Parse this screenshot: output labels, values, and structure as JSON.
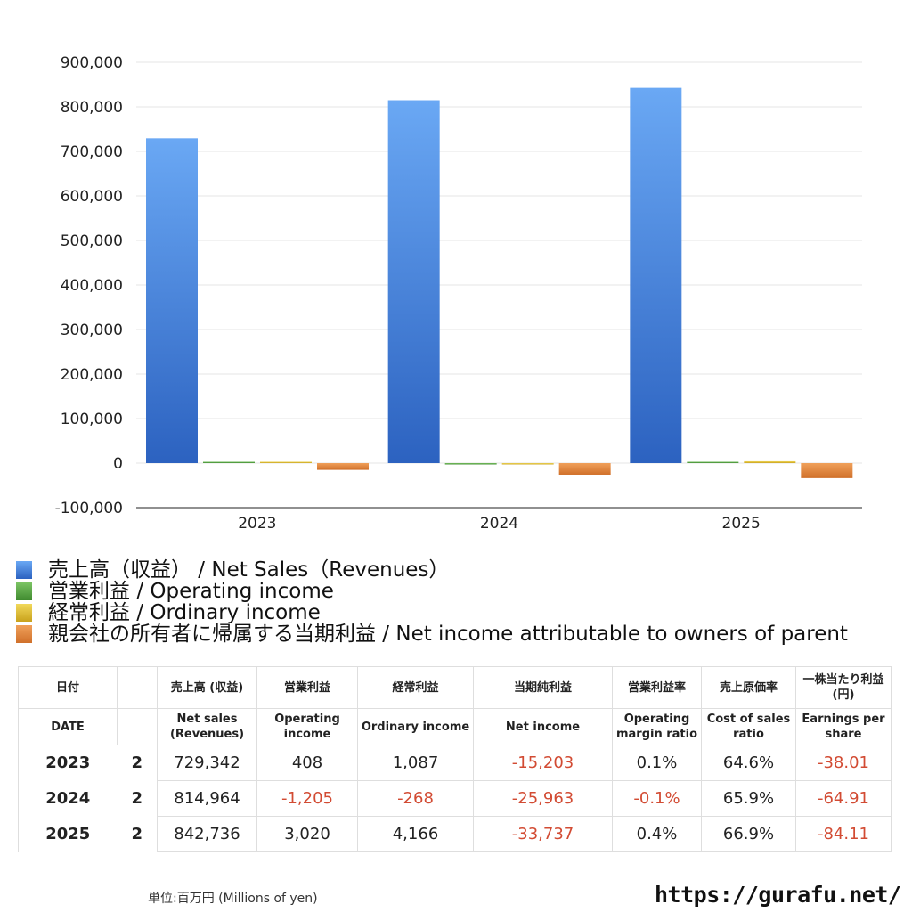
{
  "chart_data": {
    "type": "bar",
    "categories": [
      "2023",
      "2024",
      "2025"
    ],
    "series": [
      {
        "name": "売上高（収益） / Net Sales（Revenues）",
        "values": [
          729342,
          814964,
          842736
        ],
        "color": "#3f7fdc"
      },
      {
        "name": "営業利益 / Operating income",
        "values": [
          408,
          -1205,
          3020
        ],
        "color": "#5aa845"
      },
      {
        "name": "経常利益 / Ordinary income",
        "values": [
          1087,
          -268,
          4166
        ],
        "color": "#e2c130"
      },
      {
        "name": "親会社の所有者に帰属する当期利益 / Net income attributable to owners of parent",
        "values": [
          -15203,
          -25963,
          -33737
        ],
        "color": "#e0843a"
      }
    ],
    "ylim": [
      -100000,
      900000
    ],
    "yticks": [
      "900,000",
      "800,000",
      "700,000",
      "600,000",
      "500,000",
      "400,000",
      "300,000",
      "200,000",
      "100,000",
      "0",
      "-100,000"
    ],
    "grid": true,
    "legend_position": "bottom"
  },
  "table": {
    "headers_jp": [
      "日付",
      "",
      "売上高 (収益)",
      "営業利益",
      "経常利益",
      "当期純利益",
      "営業利益率",
      "売上原価率",
      "一株当たり利益\n(円)"
    ],
    "headers_en": [
      "DATE",
      "",
      "Net sales\n(Revenues)",
      "Operating\nincome",
      "Ordinary income",
      "Net income",
      "Operating\nmargin ratio",
      "Cost of sales\nratio",
      "Earnings per\nshare"
    ],
    "rows": [
      {
        "year": "2023",
        "count": "2",
        "cells": [
          "729,342",
          "408",
          "1,087",
          "-15,203",
          "0.1%",
          "64.6%",
          "-38.01"
        ]
      },
      {
        "year": "2024",
        "count": "2",
        "cells": [
          "814,964",
          "-1,205",
          "-268",
          "-25,963",
          "-0.1%",
          "65.9%",
          "-64.91"
        ]
      },
      {
        "year": "2025",
        "count": "2",
        "cells": [
          "842,736",
          "3,020",
          "4,166",
          "-33,737",
          "0.4%",
          "66.9%",
          "-84.11"
        ]
      }
    ]
  },
  "footer": {
    "unit": "単位:百万円 (Millions of yen)",
    "site": "https://gurafu.net/"
  }
}
